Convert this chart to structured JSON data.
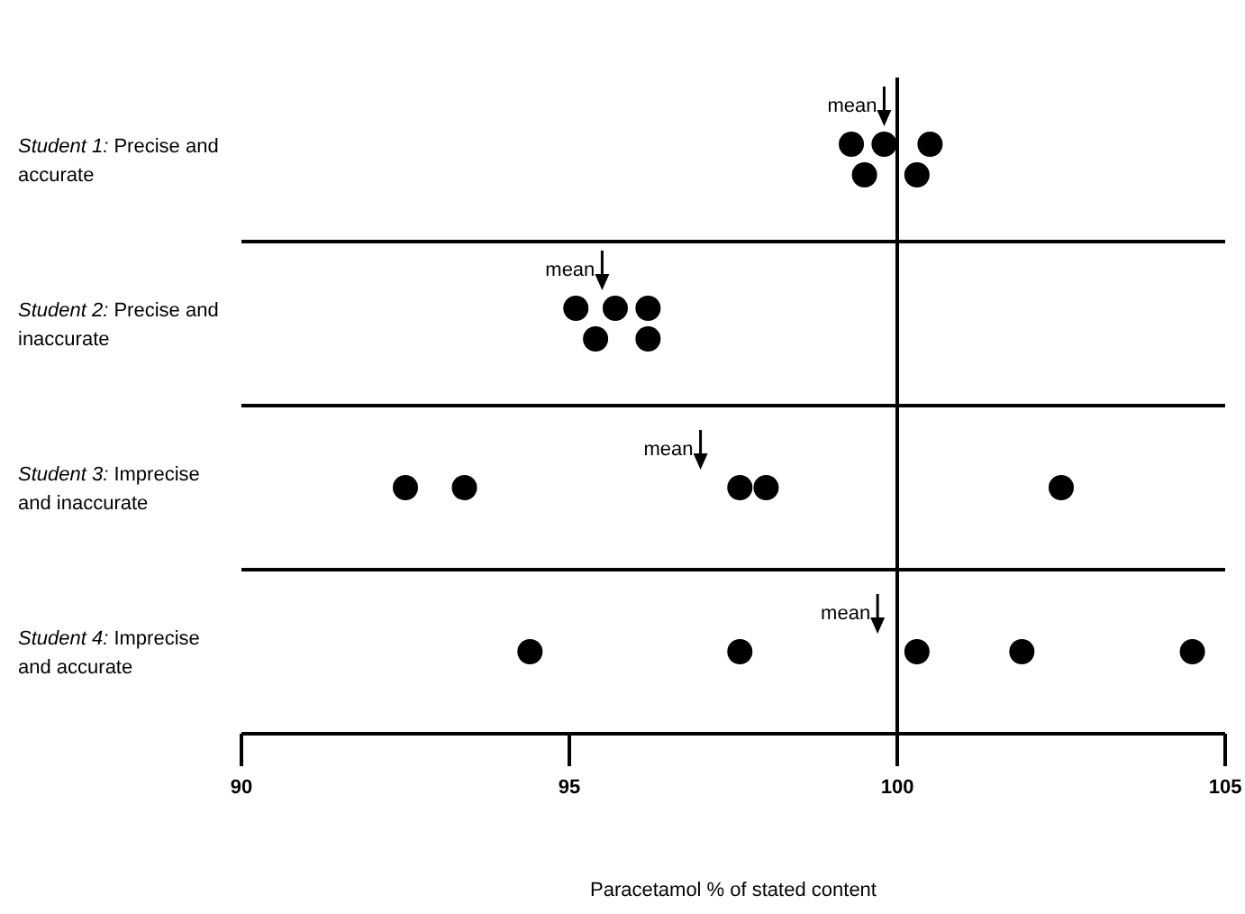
{
  "chart_data": {
    "type": "scatter",
    "orientation": "horizontal",
    "marker": "circle",
    "xlabel": "Paracetamol % of stated content",
    "categories": [
      "Student 1: Precise and accurate",
      "Student 2: Precise and inaccurate",
      "Student 3: Imprecise and inaccurate",
      "Student 4: Imprecise and accurate"
    ],
    "series": [
      {
        "color": "#000000",
        "values": [
          99.5,
          95.4,
          92.5,
          94.4
        ]
      },
      {
        "color": "#000000",
        "values": [
          100.3,
          96.2,
          93.4,
          97.6
        ]
      },
      {
        "color": "#000000",
        "values": [
          99.3,
          95.1,
          97.6,
          100.3
        ]
      },
      {
        "color": "#000000",
        "values": [
          99.8,
          95.7,
          98.0,
          101.9
        ]
      },
      {
        "color": "#000000",
        "values": [
          100.5,
          96.2,
          102.5,
          104.5
        ]
      },
      {
        "color": "#000000",
        "marker": "triangle",
        "values": [
          99.8,
          95.5,
          97.0,
          99.7
        ],
        "value_labels": [
          "mean",
          "mean",
          "mean",
          "mean"
        ]
      }
    ],
    "xlim": [
      90,
      105
    ],
    "xticks": [
      90,
      95,
      100,
      105
    ],
    "ref_lines": [
      {
        "axis": "x",
        "value": 100
      }
    ]
  }
}
